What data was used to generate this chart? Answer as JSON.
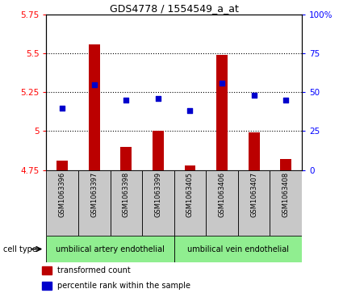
{
  "title": "GDS4778 / 1554549_a_at",
  "samples": [
    "GSM1063396",
    "GSM1063397",
    "GSM1063398",
    "GSM1063399",
    "GSM1063405",
    "GSM1063406",
    "GSM1063407",
    "GSM1063408"
  ],
  "red_values": [
    4.81,
    5.56,
    4.9,
    5.0,
    4.78,
    5.49,
    4.99,
    4.82
  ],
  "blue_values_pct": [
    40,
    55,
    45,
    46,
    38,
    56,
    48,
    45
  ],
  "ylim_left": [
    4.75,
    5.75
  ],
  "ylim_right": [
    0,
    100
  ],
  "yticks_left": [
    4.75,
    5.0,
    5.25,
    5.5,
    5.75
  ],
  "yticks_right": [
    0,
    25,
    50,
    75,
    100
  ],
  "ytick_labels_left": [
    "4.75",
    "5",
    "5.25",
    "5.5",
    "5.75"
  ],
  "ytick_labels_right": [
    "0",
    "25",
    "50",
    "75",
    "100%"
  ],
  "cell_type_groups": [
    {
      "label": "umbilical artery endothelial",
      "start": 0,
      "end": 3,
      "color": "#90EE90"
    },
    {
      "label": "umbilical vein endothelial",
      "start": 4,
      "end": 7,
      "color": "#90EE90"
    }
  ],
  "cell_type_label": "cell type",
  "bar_color": "#BB0000",
  "dot_color": "#0000CC",
  "bar_baseline": 4.75,
  "legend_red": "transformed count",
  "legend_blue": "percentile rank within the sample",
  "bg_color": "#FFFFFF",
  "sample_box_color": "#C8C8C8",
  "bar_width": 0.35
}
